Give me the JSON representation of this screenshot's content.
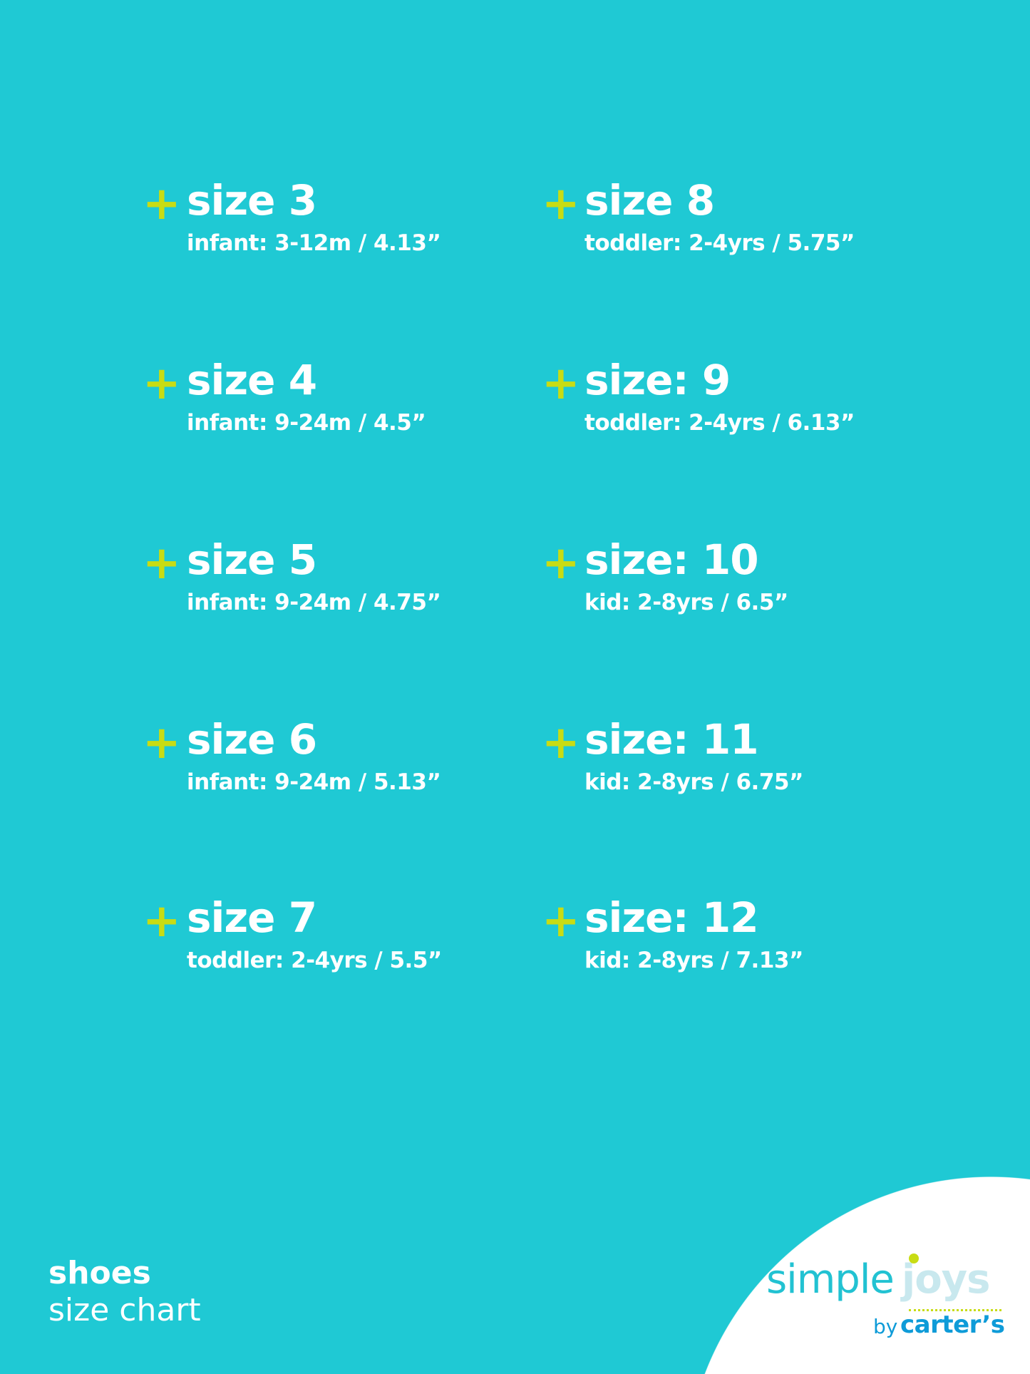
{
  "colors": {
    "background": "#1fc9d4",
    "plus": "#c8dc14",
    "text": "#ffffff",
    "logo_simple": "#22c2d2",
    "logo_joys": "#c8e8ee",
    "logo_carters": "#0e9bd8"
  },
  "left": [
    {
      "title": "size 3",
      "sub": "infant: 3-12m / 4.13”"
    },
    {
      "title": "size 4",
      "sub": "infant: 9-24m / 4.5”"
    },
    {
      "title": "size 5",
      "sub": "infant: 9-24m / 4.75”"
    },
    {
      "title": "size 6",
      "sub": "infant: 9-24m / 5.13”"
    },
    {
      "title": "size 7",
      "sub": "toddler: 2-4yrs / 5.5”"
    }
  ],
  "right": [
    {
      "title": "size 8",
      "sub": "toddler: 2-4yrs / 5.75”"
    },
    {
      "title": "size: 9",
      "sub": "toddler: 2-4yrs / 6.13”"
    },
    {
      "title": "size: 10",
      "sub": "kid: 2-8yrs / 6.5”"
    },
    {
      "title": "size: 11",
      "sub": "kid: 2-8yrs / 6.75”"
    },
    {
      "title": "size: 12",
      "sub": "kid: 2-8yrs / 7.13”"
    }
  ],
  "plus_symbol": "+",
  "footer": {
    "line1": "shoes",
    "line2": "size chart"
  },
  "logo": {
    "simple": "simple",
    "joys": "joys",
    "by": "by",
    "carters": "carter’s"
  }
}
